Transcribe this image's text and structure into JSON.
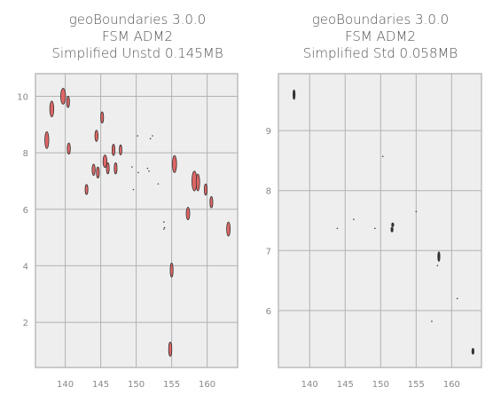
{
  "panels": [
    {
      "title_lines": [
        "geoBoundaries 3.0.0",
        "FSM ADM2",
        "Simplified Unstd 0.145MB"
      ],
      "xlim": [
        135.8,
        164.3
      ],
      "ylim": [
        0.4,
        10.8
      ],
      "xticks": [
        140,
        145,
        150,
        155,
        160
      ],
      "yticks": [
        2,
        4,
        6,
        8,
        10
      ],
      "colors": {
        "fill": "#e06666",
        "stroke": "#333333",
        "background": "#eeeeee",
        "grid": "#b2b2b2"
      },
      "features": [
        {
          "x": 138.1,
          "y": 9.55,
          "rx": 0.28,
          "ry": 0.28
        },
        {
          "x": 139.7,
          "y": 10.0,
          "rx": 0.35,
          "ry": 0.28
        },
        {
          "x": 140.4,
          "y": 9.8,
          "rx": 0.2,
          "ry": 0.2
        },
        {
          "x": 137.4,
          "y": 8.45,
          "rx": 0.28,
          "ry": 0.3
        },
        {
          "x": 140.5,
          "y": 8.15,
          "rx": 0.22,
          "ry": 0.2
        },
        {
          "x": 144.4,
          "y": 8.6,
          "rx": 0.22,
          "ry": 0.2
        },
        {
          "x": 145.2,
          "y": 9.25,
          "rx": 0.2,
          "ry": 0.2
        },
        {
          "x": 146.8,
          "y": 8.1,
          "rx": 0.2,
          "ry": 0.2
        },
        {
          "x": 147.8,
          "y": 8.1,
          "rx": 0.18,
          "ry": 0.18
        },
        {
          "x": 145.6,
          "y": 7.7,
          "rx": 0.28,
          "ry": 0.22
        },
        {
          "x": 146.0,
          "y": 7.45,
          "rx": 0.2,
          "ry": 0.2
        },
        {
          "x": 144.0,
          "y": 7.4,
          "rx": 0.22,
          "ry": 0.2
        },
        {
          "x": 144.6,
          "y": 7.3,
          "rx": 0.2,
          "ry": 0.2
        },
        {
          "x": 147.1,
          "y": 7.45,
          "rx": 0.2,
          "ry": 0.2
        },
        {
          "x": 143.0,
          "y": 6.7,
          "rx": 0.2,
          "ry": 0.18
        },
        {
          "x": 155.4,
          "y": 7.6,
          "rx": 0.3,
          "ry": 0.3
        },
        {
          "x": 158.2,
          "y": 7.0,
          "rx": 0.35,
          "ry": 0.35
        },
        {
          "x": 158.7,
          "y": 6.95,
          "rx": 0.25,
          "ry": 0.3
        },
        {
          "x": 159.8,
          "y": 6.7,
          "rx": 0.2,
          "ry": 0.2
        },
        {
          "x": 160.6,
          "y": 6.25,
          "rx": 0.2,
          "ry": 0.2
        },
        {
          "x": 157.3,
          "y": 5.85,
          "rx": 0.25,
          "ry": 0.22
        },
        {
          "x": 163.0,
          "y": 5.3,
          "rx": 0.25,
          "ry": 0.25
        },
        {
          "x": 155.0,
          "y": 3.85,
          "rx": 0.2,
          "ry": 0.25
        },
        {
          "x": 154.8,
          "y": 1.05,
          "rx": 0.22,
          "ry": 0.25
        }
      ],
      "specks": [
        {
          "x": 151.8,
          "y": 7.35
        },
        {
          "x": 151.6,
          "y": 7.45
        },
        {
          "x": 153.1,
          "y": 6.9
        },
        {
          "x": 149.6,
          "y": 6.7
        },
        {
          "x": 153.9,
          "y": 5.55
        },
        {
          "x": 154.0,
          "y": 5.35
        },
        {
          "x": 150.2,
          "y": 8.6
        },
        {
          "x": 152.0,
          "y": 8.5
        },
        {
          "x": 152.3,
          "y": 8.6
        },
        {
          "x": 149.4,
          "y": 7.5
        },
        {
          "x": 150.3,
          "y": 7.3
        },
        {
          "x": 153.9,
          "y": 5.3
        }
      ]
    },
    {
      "title_lines": [
        "geoBoundaries 3.0.0",
        "FSM ADM2",
        "Simplified Std 0.058MB"
      ],
      "xlim": [
        135.6,
        164.2
      ],
      "ylim": [
        5.05,
        9.95
      ],
      "xticks": [
        140,
        145,
        150,
        155,
        160
      ],
      "yticks": [
        6,
        7,
        8,
        9
      ],
      "colors": {
        "fill": "#333333",
        "stroke": "#333333",
        "background": "#eeeeee",
        "grid": "#b2b2b2"
      },
      "features": [
        {
          "x": 137.8,
          "y": 9.6,
          "rx": 0.12,
          "ry": 0.08
        },
        {
          "x": 158.2,
          "y": 6.9,
          "rx": 0.14,
          "ry": 0.08
        },
        {
          "x": 163.0,
          "y": 5.32,
          "rx": 0.1,
          "ry": 0.05
        },
        {
          "x": 151.6,
          "y": 7.35,
          "rx": 0.12,
          "ry": 0.04
        },
        {
          "x": 151.7,
          "y": 7.43,
          "rx": 0.06,
          "ry": 0.03
        }
      ],
      "specks": [
        {
          "x": 149.2,
          "y": 7.37
        },
        {
          "x": 143.9,
          "y": 7.37
        },
        {
          "x": 146.2,
          "y": 7.52
        },
        {
          "x": 150.3,
          "y": 8.57
        },
        {
          "x": 155.0,
          "y": 7.65
        },
        {
          "x": 160.8,
          "y": 6.2
        },
        {
          "x": 157.2,
          "y": 5.82
        },
        {
          "x": 158.0,
          "y": 6.75
        }
      ]
    }
  ]
}
